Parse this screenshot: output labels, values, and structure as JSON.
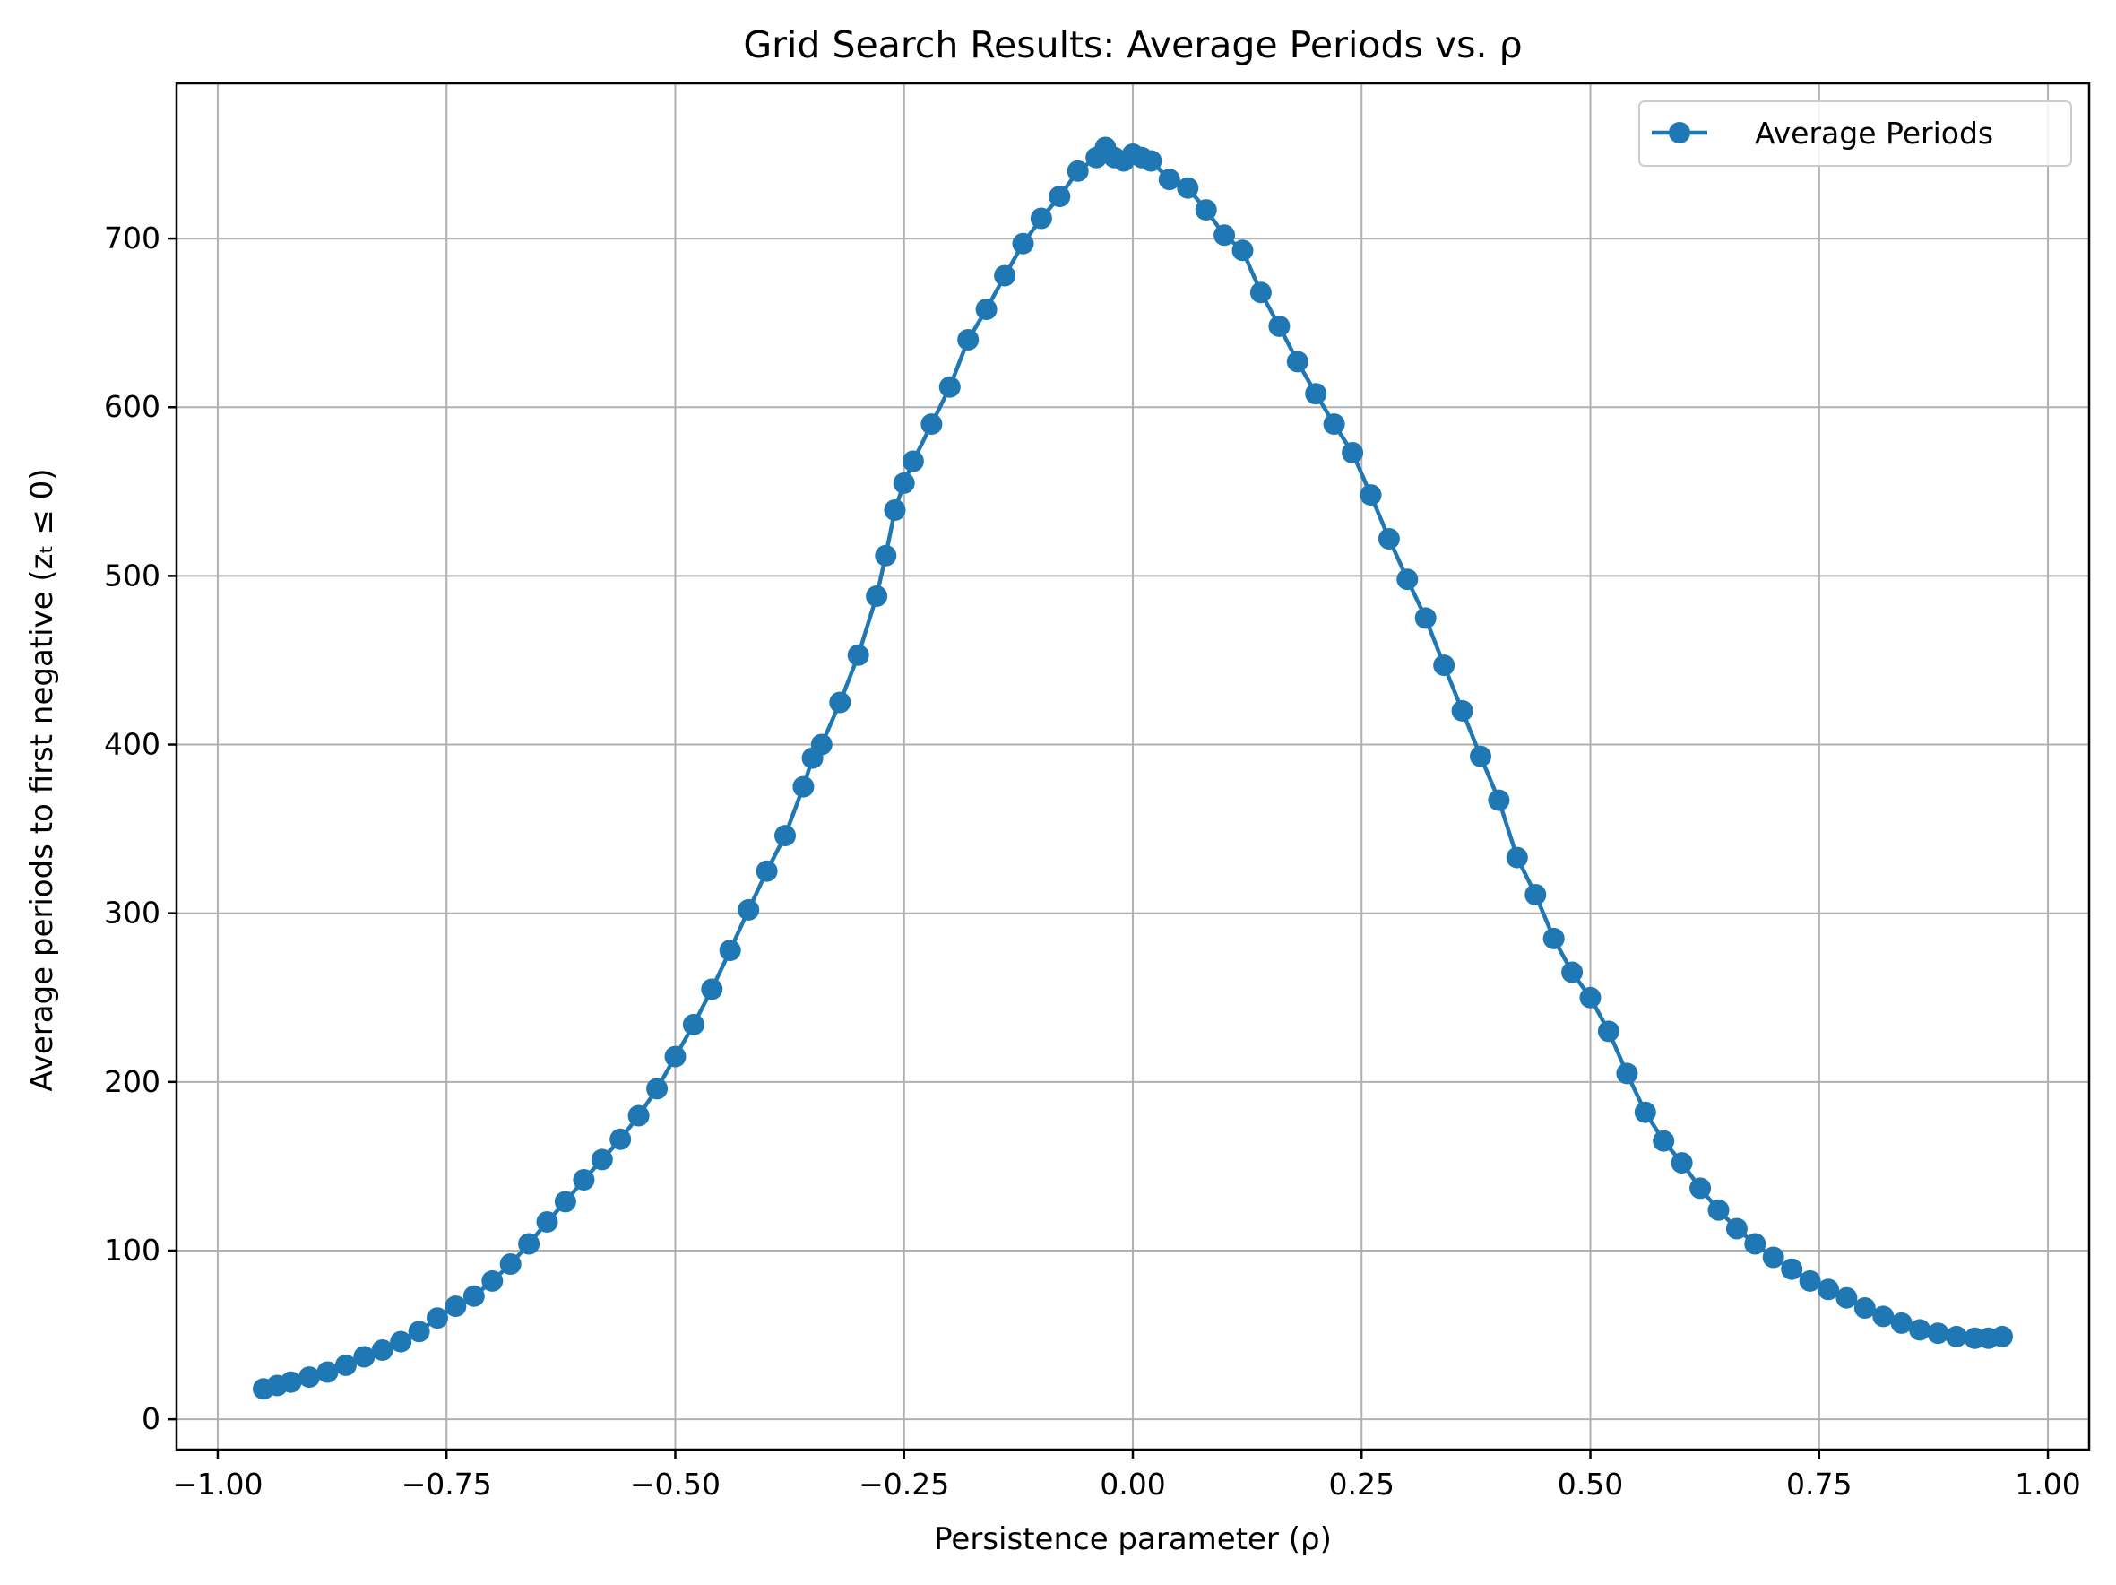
{
  "chart_data": {
    "type": "line",
    "title": "Grid Search Results: Average Periods vs. ρ",
    "xlabel": "Persistence parameter (ρ)",
    "ylabel": "Average periods to first negative (zₜ ≤ 0)",
    "xlim": [
      -1.045,
      1.045
    ],
    "ylim": [
      -18,
      792
    ],
    "xticks": [
      -1.0,
      -0.75,
      -0.5,
      -0.25,
      0.0,
      0.25,
      0.5,
      0.75,
      1.0
    ],
    "xtick_labels": [
      "−1.00",
      "−0.75",
      "−0.50",
      "−0.25",
      "0.00",
      "0.25",
      "0.50",
      "0.75",
      "1.00"
    ],
    "yticks": [
      0,
      100,
      200,
      300,
      400,
      500,
      600,
      700
    ],
    "ytick_labels": [
      "0",
      "100",
      "200",
      "300",
      "400",
      "500",
      "600",
      "700"
    ],
    "grid": true,
    "legend_position": "top-right",
    "series": [
      {
        "name": "Average Periods",
        "color": "#1f77b4",
        "marker": "circle",
        "points": [
          [
            -0.95,
            18
          ],
          [
            -0.935,
            20
          ],
          [
            -0.92,
            22
          ],
          [
            -0.9,
            25
          ],
          [
            -0.88,
            28
          ],
          [
            -0.86,
            32
          ],
          [
            -0.84,
            37
          ],
          [
            -0.82,
            41
          ],
          [
            -0.8,
            46
          ],
          [
            -0.78,
            52
          ],
          [
            -0.76,
            60
          ],
          [
            -0.74,
            67
          ],
          [
            -0.72,
            73
          ],
          [
            -0.7,
            82
          ],
          [
            -0.68,
            92
          ],
          [
            -0.66,
            104
          ],
          [
            -0.64,
            117
          ],
          [
            -0.62,
            129
          ],
          [
            -0.6,
            142
          ],
          [
            -0.58,
            154
          ],
          [
            -0.56,
            166
          ],
          [
            -0.54,
            180
          ],
          [
            -0.52,
            196
          ],
          [
            -0.5,
            215
          ],
          [
            -0.48,
            234
          ],
          [
            -0.46,
            255
          ],
          [
            -0.44,
            278
          ],
          [
            -0.42,
            302
          ],
          [
            -0.4,
            325
          ],
          [
            -0.38,
            346
          ],
          [
            -0.36,
            375
          ],
          [
            -0.35,
            392
          ],
          [
            -0.34,
            400
          ],
          [
            -0.32,
            425
          ],
          [
            -0.3,
            453
          ],
          [
            -0.28,
            488
          ],
          [
            -0.27,
            512
          ],
          [
            -0.26,
            539
          ],
          [
            -0.25,
            555
          ],
          [
            -0.24,
            568
          ],
          [
            -0.22,
            590
          ],
          [
            -0.2,
            612
          ],
          [
            -0.18,
            640
          ],
          [
            -0.16,
            658
          ],
          [
            -0.14,
            678
          ],
          [
            -0.12,
            697
          ],
          [
            -0.1,
            712
          ],
          [
            -0.08,
            725
          ],
          [
            -0.06,
            740
          ],
          [
            -0.04,
            748
          ],
          [
            -0.03,
            754
          ],
          [
            -0.02,
            748
          ],
          [
            -0.01,
            746
          ],
          [
            0.0,
            750
          ],
          [
            0.01,
            748
          ],
          [
            0.02,
            746
          ],
          [
            0.04,
            735
          ],
          [
            0.06,
            730
          ],
          [
            0.08,
            717
          ],
          [
            0.1,
            702
          ],
          [
            0.12,
            693
          ],
          [
            0.14,
            668
          ],
          [
            0.16,
            648
          ],
          [
            0.18,
            627
          ],
          [
            0.2,
            608
          ],
          [
            0.22,
            590
          ],
          [
            0.24,
            573
          ],
          [
            0.26,
            548
          ],
          [
            0.28,
            522
          ],
          [
            0.3,
            498
          ],
          [
            0.32,
            475
          ],
          [
            0.34,
            447
          ],
          [
            0.36,
            420
          ],
          [
            0.38,
            393
          ],
          [
            0.4,
            367
          ],
          [
            0.42,
            333
          ],
          [
            0.44,
            311
          ],
          [
            0.46,
            285
          ],
          [
            0.48,
            265
          ],
          [
            0.5,
            250
          ],
          [
            0.52,
            230
          ],
          [
            0.54,
            205
          ],
          [
            0.56,
            182
          ],
          [
            0.58,
            165
          ],
          [
            0.6,
            152
          ],
          [
            0.62,
            137
          ],
          [
            0.64,
            124
          ],
          [
            0.66,
            113
          ],
          [
            0.68,
            104
          ],
          [
            0.7,
            96
          ],
          [
            0.72,
            89
          ],
          [
            0.74,
            82
          ],
          [
            0.76,
            77
          ],
          [
            0.78,
            72
          ],
          [
            0.8,
            66
          ],
          [
            0.82,
            61
          ],
          [
            0.84,
            57
          ],
          [
            0.86,
            53
          ],
          [
            0.88,
            51
          ],
          [
            0.9,
            49
          ],
          [
            0.92,
            48
          ],
          [
            0.935,
            48
          ],
          [
            0.95,
            49
          ]
        ]
      }
    ]
  }
}
